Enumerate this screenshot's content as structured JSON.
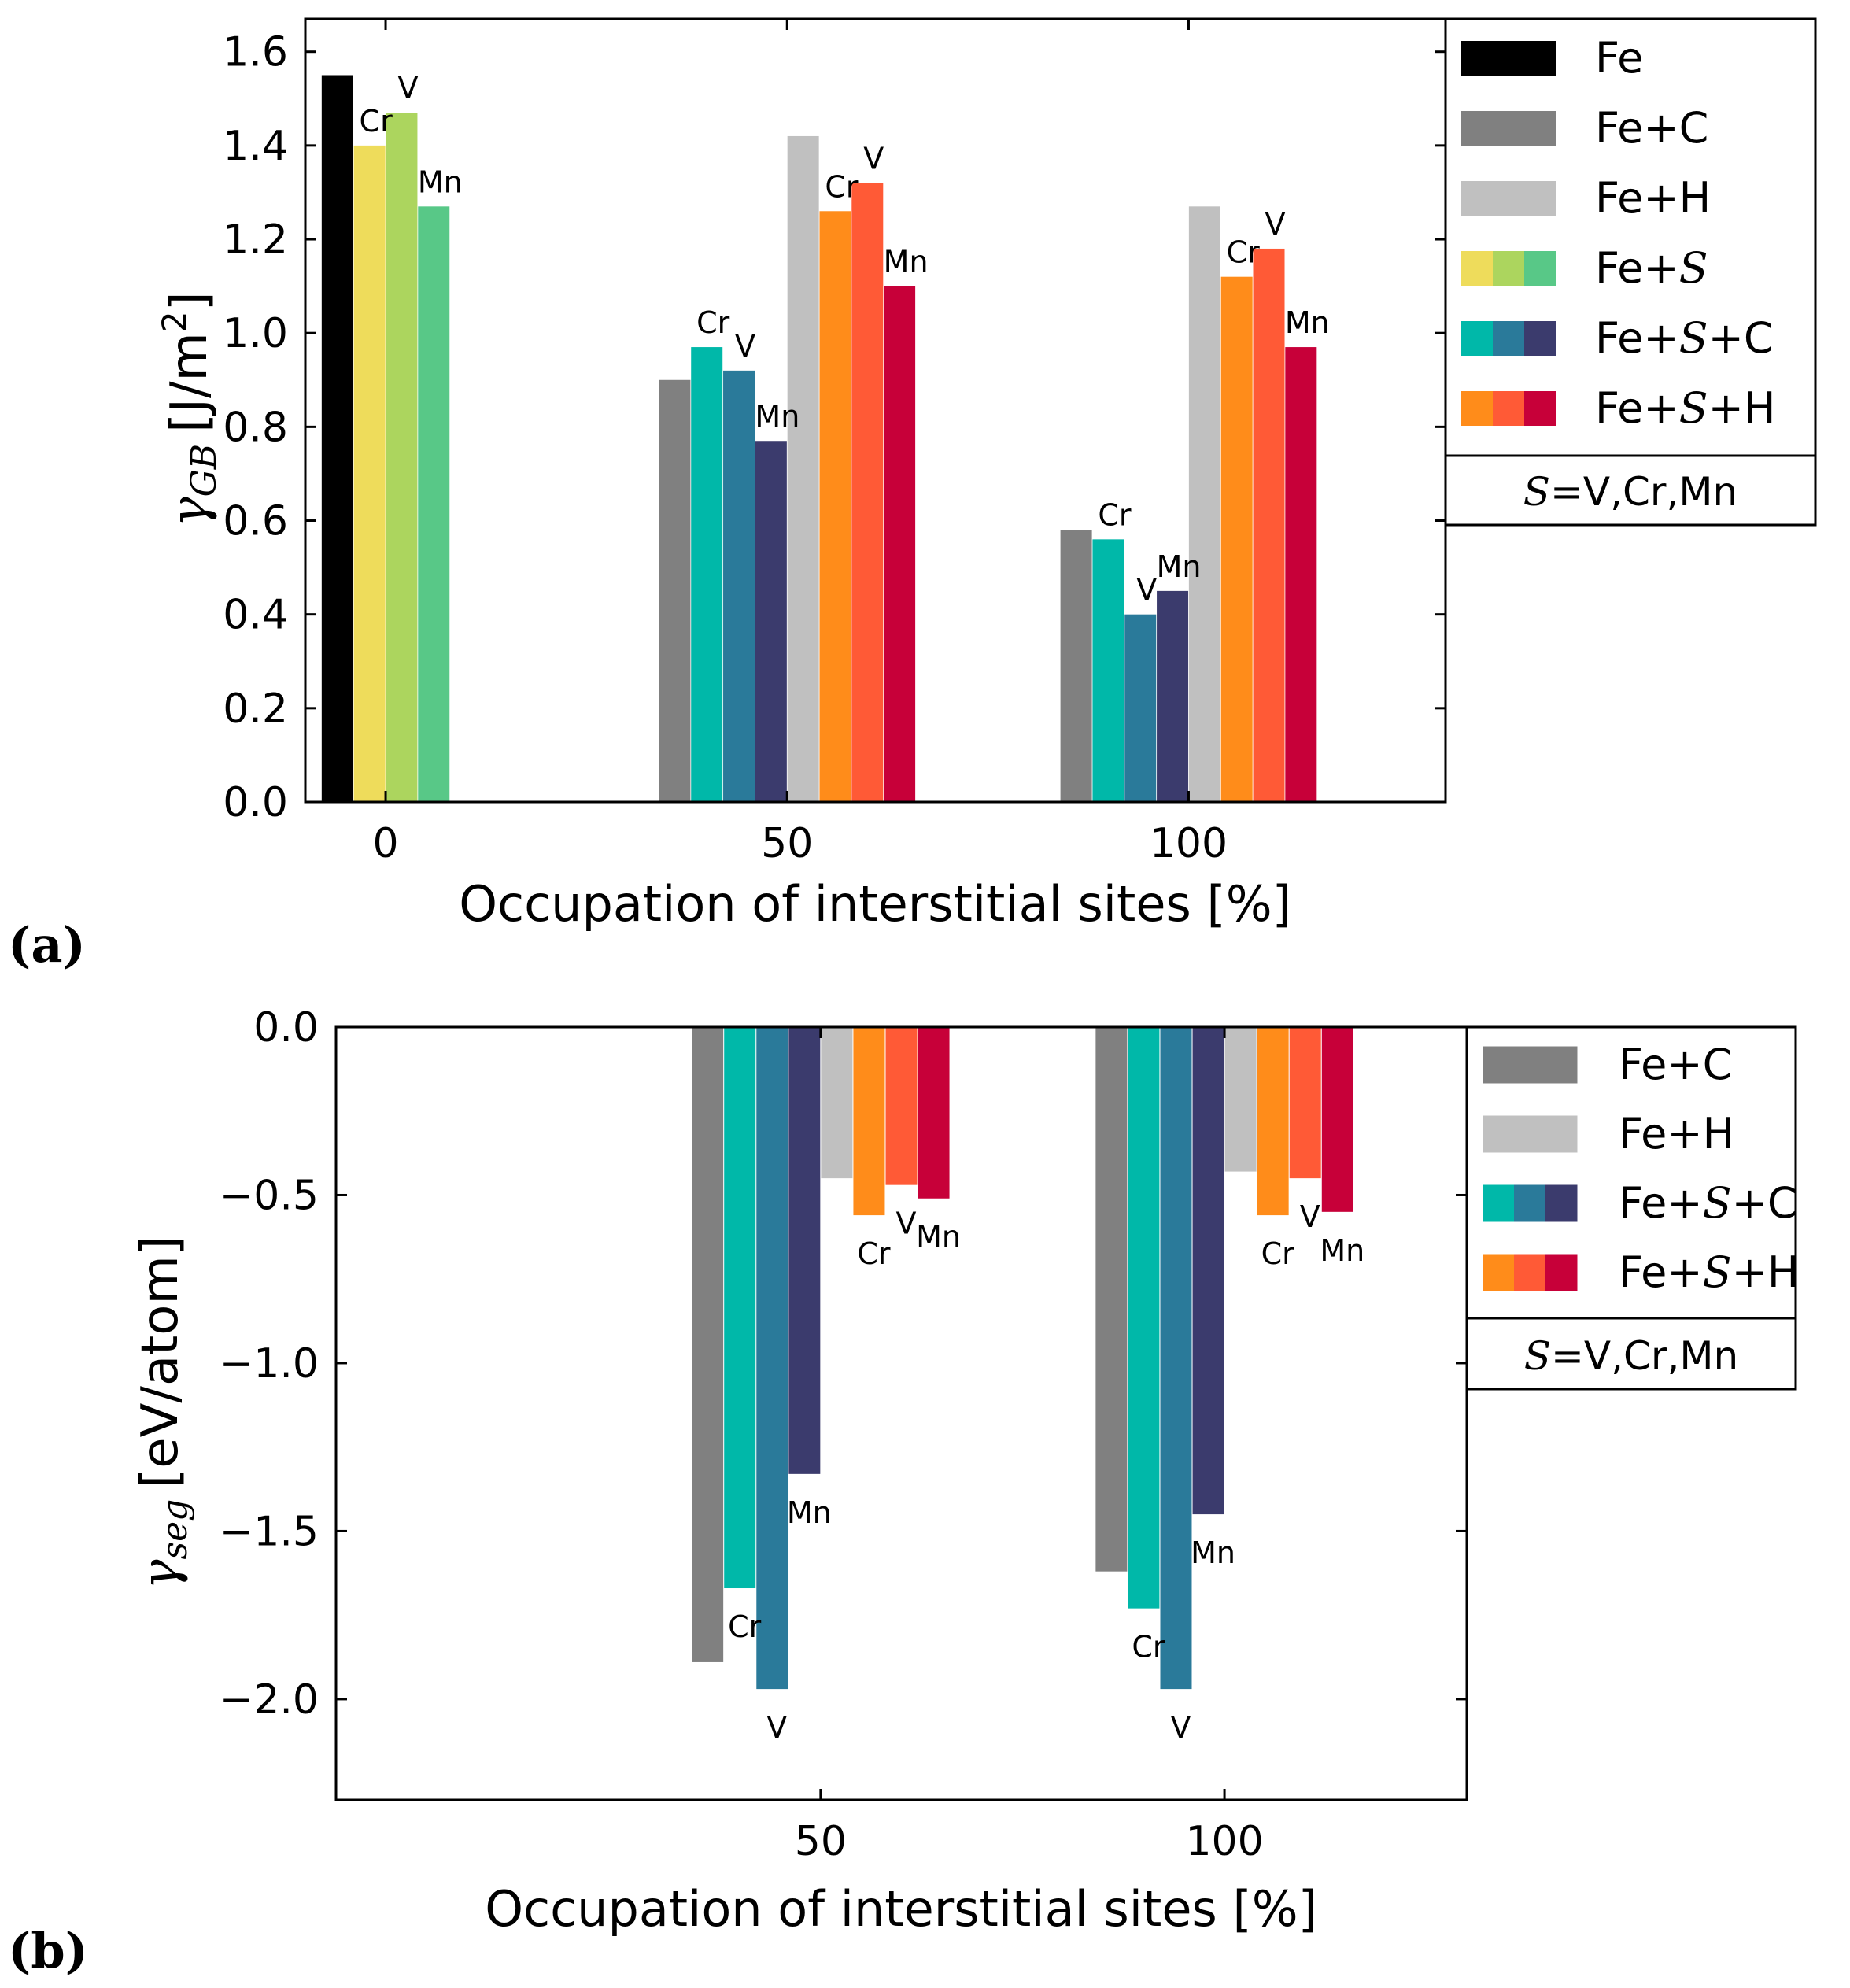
{
  "charts": [
    {
      "panel": "(a)",
      "xlabel": "Occupation of interstitial sites [%]",
      "ylabel_symbol": "γ",
      "ylabel_sub": "GB",
      "ylabel_unit_pre": "[J/m",
      "ylabel_unit_sup": "2",
      "ylabel_unit_post": "]",
      "legend": [
        {
          "label_pre": "Fe",
          "label_s": "",
          "label_post": "",
          "colors": [
            "#000000"
          ]
        },
        {
          "label_pre": "Fe+C",
          "label_s": "",
          "label_post": "",
          "colors": [
            "#808080"
          ]
        },
        {
          "label_pre": "Fe+H",
          "label_s": "",
          "label_post": "",
          "colors": [
            "#c0c0c0"
          ]
        },
        {
          "label_pre": "Fe+",
          "label_s": "S",
          "label_post": "",
          "colors": [
            "#eedc5b",
            "#acd55e",
            "#58c887"
          ]
        },
        {
          "label_pre": "Fe+",
          "label_s": "S",
          "label_post": "+C",
          "colors": [
            "#00b8a9",
            "#2a7a9a",
            "#3b3b6d"
          ]
        },
        {
          "label_pre": "Fe+",
          "label_s": "S",
          "label_post": "+H",
          "colors": [
            "#ff8c1a",
            "#ff5a36",
            "#c70039"
          ]
        }
      ],
      "note": {
        "s": "S",
        "text": "=V,Cr,Mn"
      }
    },
    {
      "panel": "(b)",
      "xlabel": "Occupation of interstitial sites [%]",
      "ylabel_symbol": "γ",
      "ylabel_sub": "seg",
      "ylabel_unit_pre": "[eV/atom]",
      "ylabel_unit_sup": "",
      "ylabel_unit_post": "",
      "legend": [
        {
          "label_pre": "Fe+C",
          "label_s": "",
          "label_post": "",
          "colors": [
            "#808080"
          ]
        },
        {
          "label_pre": "Fe+H",
          "label_s": "",
          "label_post": "",
          "colors": [
            "#c0c0c0"
          ]
        },
        {
          "label_pre": "Fe+",
          "label_s": "S",
          "label_post": "+C",
          "colors": [
            "#00b8a9",
            "#2a7a9a",
            "#3b3b6d"
          ]
        },
        {
          "label_pre": "Fe+",
          "label_s": "S",
          "label_post": "+H",
          "colors": [
            "#ff8c1a",
            "#ff5a36",
            "#c70039"
          ]
        }
      ],
      "note": {
        "s": "S",
        "text": "=V,Cr,Mn"
      }
    }
  ],
  "chart_data": [
    {
      "type": "bar",
      "title": "",
      "xlabel": "Occupation of interstitial sites [%]",
      "ylabel": "γGB [J/m2]",
      "xlim": [
        -10,
        132
      ],
      "ylim": [
        0.0,
        1.67
      ],
      "xticks": [
        0,
        50,
        100
      ],
      "yticks": [
        "0.0",
        "0.2",
        "0.4",
        "0.6",
        "0.8",
        "1.0",
        "1.2",
        "1.4",
        "1.6"
      ],
      "bars": [
        {
          "x": 0,
          "offset": -6,
          "value": 1.55,
          "color": "#000000",
          "series": "Fe",
          "label": ""
        },
        {
          "x": 0,
          "offset": -2,
          "value": 1.4,
          "color": "#eedc5b",
          "series": "Fe+S",
          "label": "Cr"
        },
        {
          "x": 0,
          "offset": 2,
          "value": 1.47,
          "color": "#acd55e",
          "series": "Fe+S",
          "label": "V"
        },
        {
          "x": 0,
          "offset": 6,
          "value": 1.27,
          "color": "#58c887",
          "series": "Fe+S",
          "label": "Mn"
        },
        {
          "x": 50,
          "offset": -14,
          "value": 0.9,
          "color": "#808080",
          "series": "Fe+C",
          "label": ""
        },
        {
          "x": 50,
          "offset": -10,
          "value": 0.97,
          "color": "#00b8a9",
          "series": "Fe+S+C",
          "label": "Cr"
        },
        {
          "x": 50,
          "offset": -6,
          "value": 0.92,
          "color": "#2a7a9a",
          "series": "Fe+S+C",
          "label": "V"
        },
        {
          "x": 50,
          "offset": -2,
          "value": 0.77,
          "color": "#3b3b6d",
          "series": "Fe+S+C",
          "label": "Mn"
        },
        {
          "x": 50,
          "offset": 2,
          "value": 1.42,
          "color": "#c0c0c0",
          "series": "Fe+H",
          "label": ""
        },
        {
          "x": 50,
          "offset": 6,
          "value": 1.26,
          "color": "#ff8c1a",
          "series": "Fe+S+H",
          "label": "Cr"
        },
        {
          "x": 50,
          "offset": 10,
          "value": 1.32,
          "color": "#ff5a36",
          "series": "Fe+S+H",
          "label": "V"
        },
        {
          "x": 50,
          "offset": 14,
          "value": 1.1,
          "color": "#c70039",
          "series": "Fe+S+H",
          "label": "Mn"
        },
        {
          "x": 100,
          "offset": -14,
          "value": 0.58,
          "color": "#808080",
          "series": "Fe+C",
          "label": ""
        },
        {
          "x": 100,
          "offset": -10,
          "value": 0.56,
          "color": "#00b8a9",
          "series": "Fe+S+C",
          "label": "Cr"
        },
        {
          "x": 100,
          "offset": -6,
          "value": 0.4,
          "color": "#2a7a9a",
          "series": "Fe+S+C",
          "label": "V"
        },
        {
          "x": 100,
          "offset": -2,
          "value": 0.45,
          "color": "#3b3b6d",
          "series": "Fe+S+C",
          "label": "Mn"
        },
        {
          "x": 100,
          "offset": 2,
          "value": 1.27,
          "color": "#c0c0c0",
          "series": "Fe+H",
          "label": ""
        },
        {
          "x": 100,
          "offset": 6,
          "value": 1.12,
          "color": "#ff8c1a",
          "series": "Fe+S+H",
          "label": "Cr"
        },
        {
          "x": 100,
          "offset": 10,
          "value": 1.18,
          "color": "#ff5a36",
          "series": "Fe+S+H",
          "label": "V"
        },
        {
          "x": 100,
          "offset": 14,
          "value": 0.97,
          "color": "#c70039",
          "series": "Fe+S+H",
          "label": "Mn"
        }
      ]
    },
    {
      "type": "bar",
      "title": "",
      "xlabel": "Occupation of interstitial sites [%]",
      "ylabel": "γseg [eV/atom]",
      "xlim": [
        -10,
        130
      ],
      "ylim": [
        -2.3,
        0.0
      ],
      "xticks": [
        50,
        100
      ],
      "yticks": [
        "0.0",
        "−0.5",
        "−1.0",
        "−1.5",
        "−2.0"
      ],
      "bars": [
        {
          "x": 50,
          "offset": -14,
          "value": -1.89,
          "color": "#808080",
          "series": "Fe+C",
          "label": ""
        },
        {
          "x": 50,
          "offset": -10,
          "value": -1.67,
          "color": "#00b8a9",
          "series": "Fe+S+C",
          "label": "Cr"
        },
        {
          "x": 50,
          "offset": -6,
          "value": -1.97,
          "color": "#2a7a9a",
          "series": "Fe+S+C",
          "label": "V"
        },
        {
          "x": 50,
          "offset": -2,
          "value": -1.33,
          "color": "#3b3b6d",
          "series": "Fe+S+C",
          "label": "Mn"
        },
        {
          "x": 50,
          "offset": 2,
          "value": -0.45,
          "color": "#c0c0c0",
          "series": "Fe+H",
          "label": ""
        },
        {
          "x": 50,
          "offset": 6,
          "value": -0.56,
          "color": "#ff8c1a",
          "series": "Fe+S+H",
          "label": "Cr"
        },
        {
          "x": 50,
          "offset": 10,
          "value": -0.47,
          "color": "#ff5a36",
          "series": "Fe+S+H",
          "label": "V"
        },
        {
          "x": 50,
          "offset": 14,
          "value": -0.51,
          "color": "#c70039",
          "series": "Fe+S+H",
          "label": "Mn"
        },
        {
          "x": 100,
          "offset": -14,
          "value": -1.62,
          "color": "#808080",
          "series": "Fe+C",
          "label": ""
        },
        {
          "x": 100,
          "offset": -10,
          "value": -1.73,
          "color": "#00b8a9",
          "series": "Fe+S+C",
          "label": "Cr"
        },
        {
          "x": 100,
          "offset": -6,
          "value": -1.97,
          "color": "#2a7a9a",
          "series": "Fe+S+C",
          "label": "V"
        },
        {
          "x": 100,
          "offset": -2,
          "value": -1.45,
          "color": "#3b3b6d",
          "series": "Fe+S+C",
          "label": "Mn"
        },
        {
          "x": 100,
          "offset": 2,
          "value": -0.43,
          "color": "#c0c0c0",
          "series": "Fe+H",
          "label": ""
        },
        {
          "x": 100,
          "offset": 6,
          "value": -0.56,
          "color": "#ff8c1a",
          "series": "Fe+S+H",
          "label": "Cr"
        },
        {
          "x": 100,
          "offset": 10,
          "value": -0.45,
          "color": "#ff5a36",
          "series": "Fe+S+H",
          "label": "V"
        },
        {
          "x": 100,
          "offset": 14,
          "value": -0.55,
          "color": "#c70039",
          "series": "Fe+S+H",
          "label": "Mn"
        }
      ]
    }
  ]
}
